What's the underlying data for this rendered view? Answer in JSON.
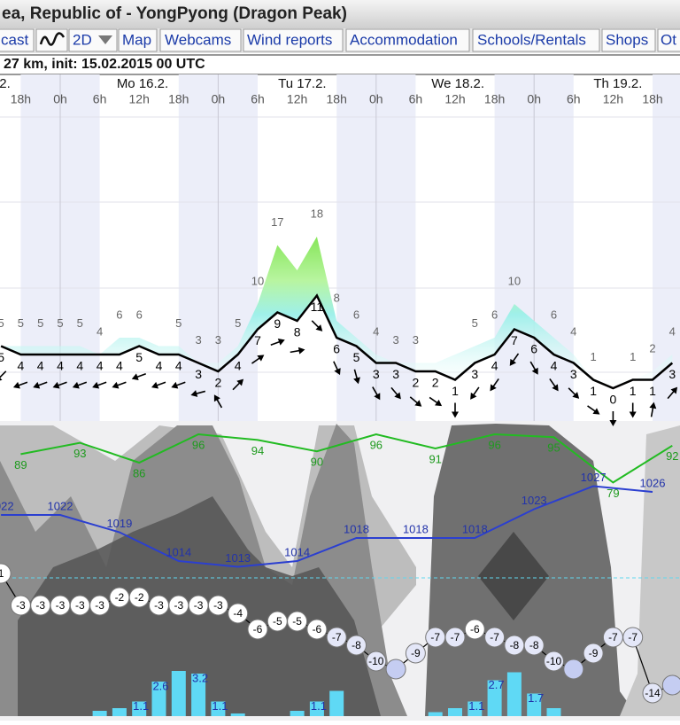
{
  "header": {
    "title": "ea, Republic of - YongPyong (Dragon Peak)"
  },
  "nav": {
    "tabs": [
      "cast",
      "2D",
      "Map",
      "Webcams",
      "Wind reports",
      "Accommodation",
      "Schools/Rentals",
      "Shops",
      "Ot"
    ]
  },
  "subtitle": "27 km, init: 15.02.2015 00 UTC",
  "meteogram": {
    "days": [
      "2.",
      "Mo 16.2.",
      "Tu 17.2.",
      "We 18.2.",
      "Th 19.2."
    ],
    "hours": [
      "18h",
      "0h",
      "6h",
      "12h",
      "18h",
      "0h",
      "6h",
      "12h",
      "18h",
      "0h",
      "6h",
      "12h",
      "18h",
      "0h",
      "6h",
      "12h",
      "18h"
    ],
    "wind_speed": [
      5,
      4,
      4,
      4,
      4,
      4,
      4,
      5,
      4,
      4,
      3,
      2,
      4,
      7,
      9,
      8,
      11,
      6,
      5,
      3,
      3,
      2,
      2,
      1,
      3,
      4,
      7,
      6,
      4,
      3,
      1,
      0,
      1,
      1,
      3
    ],
    "wind_direction": [
      225,
      250,
      250,
      250,
      250,
      250,
      250,
      250,
      250,
      250,
      255,
      330,
      45,
      55,
      70,
      80,
      135,
      155,
      165,
      150,
      140,
      130,
      125,
      180,
      215,
      215,
      215,
      150,
      145,
      135,
      125,
      180,
      180,
      10,
      40
    ],
    "wind_gust": [
      5,
      5,
      5,
      5,
      5,
      4,
      6,
      6,
      5,
      5,
      3,
      3,
      5,
      10,
      17,
      14,
      18,
      8,
      6,
      4,
      3,
      3,
      3,
      4,
      5,
      6,
      10,
      8,
      6,
      4,
      1,
      1,
      1,
      2,
      4
    ],
    "wind_gust_labels": [
      "5",
      "5",
      "5",
      "5",
      "5",
      "4",
      "6",
      "6",
      null,
      "5",
      "3",
      "3",
      "5",
      "10",
      "17",
      null,
      "18",
      "8",
      "6",
      "4",
      "3",
      "3",
      null,
      null,
      "5",
      "6",
      "10",
      null,
      "6",
      "4",
      "1",
      null,
      "1",
      "2",
      "4"
    ],
    "humidity": [
      89,
      93,
      86,
      96,
      94,
      90,
      96,
      91,
      96,
      95,
      79,
      92
    ],
    "pressure": [
      1022,
      1022,
      1019,
      1014,
      1013,
      1014,
      1018,
      1018,
      1018,
      1023,
      1027,
      1026
    ],
    "temperature": [
      1,
      -3,
      -3,
      -3,
      -3,
      -3,
      -2,
      -2,
      -3,
      -3,
      -3,
      -3,
      -4,
      -6,
      -5,
      -5,
      -6,
      -7,
      -8,
      -10,
      -11,
      -9,
      -7,
      -7,
      -6,
      -7,
      -8,
      -8,
      -10,
      -11,
      -9,
      -7,
      -7,
      -14,
      -13
    ],
    "temperature_labels": [
      "1",
      "-3",
      "-3",
      "-3",
      "-3",
      "-3",
      "-2",
      "-2",
      "-3",
      "-3",
      "-3",
      "-3",
      "-4",
      "-6",
      "-5",
      "-5",
      "-6",
      "-7",
      "-8",
      "-10",
      null,
      "-9",
      "-7",
      "-7",
      "-6",
      "-7",
      "-8",
      "-8",
      "-10",
      null,
      "-9",
      "-7",
      "-7",
      "-14",
      null
    ],
    "precipitation": [
      0,
      0,
      0,
      0,
      0,
      0.4,
      0.6,
      1.1,
      2.6,
      3.4,
      3.2,
      1.1,
      0.2,
      0,
      0,
      0.4,
      1.1,
      1.9,
      0,
      0,
      0,
      0,
      0.3,
      0.6,
      1.1,
      2.7,
      3.3,
      1.7,
      0.6,
      0,
      0,
      0,
      0,
      0,
      0
    ],
    "precipitation_labels": [
      null,
      null,
      null,
      null,
      null,
      null,
      null,
      "1.1",
      "2.6",
      null,
      "3.2",
      "1.1",
      null,
      null,
      null,
      null,
      "1.1",
      null,
      null,
      null,
      null,
      null,
      null,
      null,
      "1.1",
      "2.7",
      null,
      "1.7",
      null,
      null,
      null,
      null,
      null,
      null,
      null
    ]
  }
}
